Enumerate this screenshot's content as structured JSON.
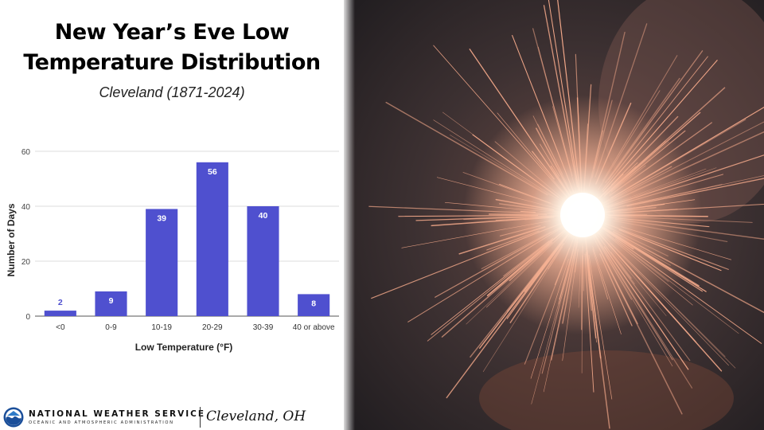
{
  "title_line1": "New Year’s Eve Low",
  "title_line2": "Temperature Distribution",
  "subtitle": "Cleveland (1871-2024)",
  "chart_data": {
    "type": "bar",
    "categories": [
      "<0",
      "0-9",
      "10-19",
      "20-29",
      "30-39",
      "40 or above"
    ],
    "values": [
      2,
      9,
      39,
      56,
      40,
      8
    ],
    "xlabel": "Low Temperature (°F)",
    "ylabel": "Number of Days",
    "ylim": [
      0,
      60
    ],
    "yticks": [
      0,
      20,
      40,
      60
    ],
    "grid": true,
    "bar_color": "#4f50cf",
    "legend": "none"
  },
  "footer": {
    "agency": "NATIONAL WEATHER SERVICE",
    "agency_sub": "OCEANIC AND ATMOSPHERIC ADMINISTRATION",
    "office": "Cleveland, OH"
  },
  "photo": {
    "subject": "sparkler-photo",
    "colors": [
      "#2b2526",
      "#f2a986",
      "#ffffff"
    ]
  }
}
